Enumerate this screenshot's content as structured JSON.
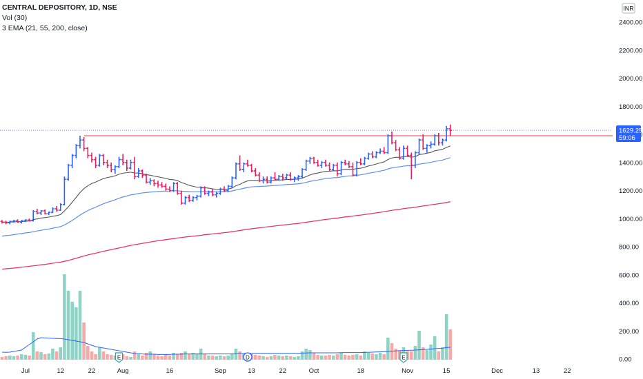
{
  "legend": {
    "symbol": "CENTRAL DEPOSITORY, 1D, NSE",
    "volume": "Vol (30)",
    "ema": "3 EMA (21, 55, 200, close)"
  },
  "currency_tag": "INR",
  "last_price_label": "1629.25",
  "countdown_label": "59:06",
  "colors": {
    "up": "#2962ff",
    "down": "#e91e63",
    "vol_up": "#8fd3c6",
    "vol_down": "#f7a9a7",
    "ema21": "#555555",
    "ema55": "#5b8def",
    "ema200": "#e8336e",
    "resistance": "#f23645",
    "last_price_line": "#2962ff",
    "badge": "#2962ff"
  },
  "event_markers": [
    {
      "label": "E",
      "date_index": 30
    },
    {
      "label": "D",
      "date_index": 63
    },
    {
      "label": "E",
      "date_index": 103
    }
  ],
  "chart_data": {
    "type": "ohlc",
    "title": "CENTRAL DEPOSITORY, 1D, NSE",
    "y_ticks": [
      "2400.00",
      "2200.00",
      "2000.00",
      "1800.00",
      "1600.00",
      "1400.00",
      "1200.00",
      "1000.00",
      "800.00",
      "600.00",
      "400.00",
      "200.00",
      "0.00"
    ],
    "y_range": [
      -40,
      2500
    ],
    "x_ticks": [
      {
        "label": "Jul",
        "i": 6
      },
      {
        "label": "12",
        "i": 15
      },
      {
        "label": "22",
        "i": 23
      },
      {
        "label": "Aug",
        "i": 31
      },
      {
        "label": "16",
        "i": 43
      },
      {
        "label": "Sep",
        "i": 56
      },
      {
        "label": "13",
        "i": 64
      },
      {
        "label": "22",
        "i": 72
      },
      {
        "label": "Oct",
        "i": 80
      },
      {
        "label": "18",
        "i": 92
      },
      {
        "label": "Nov",
        "i": 104
      },
      {
        "label": "15",
        "i": 114
      },
      {
        "label": "Dec",
        "i": 127
      },
      {
        "label": "13",
        "i": 137
      },
      {
        "label": "22",
        "i": 145
      }
    ],
    "resistance_level": 1590,
    "last_price": 1629.25,
    "x_count": 150,
    "bars": [
      [
        980,
        990,
        965,
        975,
        20
      ],
      [
        975,
        985,
        960,
        970,
        25
      ],
      [
        970,
        985,
        960,
        980,
        30
      ],
      [
        980,
        990,
        970,
        985,
        25
      ],
      [
        985,
        995,
        970,
        975,
        30
      ],
      [
        975,
        990,
        965,
        985,
        40
      ],
      [
        985,
        995,
        975,
        990,
        35
      ],
      [
        990,
        1000,
        980,
        985,
        30
      ],
      [
        985,
        1060,
        980,
        1050,
        200
      ],
      [
        1050,
        1070,
        1030,
        1040,
        60
      ],
      [
        1040,
        1060,
        1025,
        1055,
        55
      ],
      [
        1055,
        1065,
        1030,
        1035,
        40
      ],
      [
        1035,
        1050,
        1025,
        1045,
        45
      ],
      [
        1045,
        1080,
        1040,
        1070,
        80
      ],
      [
        1070,
        1090,
        1050,
        1060,
        60
      ],
      [
        1060,
        1110,
        1055,
        1100,
        90
      ],
      [
        1100,
        1300,
        1095,
        1280,
        620
      ],
      [
        1280,
        1390,
        1270,
        1380,
        500
      ],
      [
        1380,
        1460,
        1360,
        1450,
        420
      ],
      [
        1450,
        1530,
        1430,
        1520,
        380
      ],
      [
        1520,
        1590,
        1500,
        1560,
        500
      ],
      [
        1560,
        1580,
        1480,
        1500,
        270
      ],
      [
        1500,
        1510,
        1430,
        1450,
        100
      ],
      [
        1450,
        1470,
        1400,
        1420,
        60
      ],
      [
        1420,
        1440,
        1360,
        1380,
        40
      ],
      [
        1380,
        1460,
        1370,
        1450,
        90
      ],
      [
        1450,
        1460,
        1380,
        1400,
        60
      ],
      [
        1400,
        1420,
        1360,
        1380,
        40
      ],
      [
        1380,
        1400,
        1330,
        1350,
        35
      ],
      [
        1350,
        1380,
        1320,
        1370,
        30
      ],
      [
        1370,
        1440,
        1360,
        1420,
        30
      ],
      [
        1420,
        1460,
        1380,
        1400,
        40
      ],
      [
        1400,
        1420,
        1340,
        1360,
        25
      ],
      [
        1360,
        1420,
        1350,
        1400,
        20
      ],
      [
        1400,
        1440,
        1280,
        1300,
        60
      ],
      [
        1300,
        1360,
        1290,
        1340,
        40
      ],
      [
        1340,
        1350,
        1290,
        1310,
        30
      ],
      [
        1310,
        1320,
        1250,
        1260,
        50
      ],
      [
        1260,
        1290,
        1240,
        1270,
        60
      ],
      [
        1270,
        1280,
        1230,
        1250,
        40
      ],
      [
        1250,
        1270,
        1220,
        1240,
        30
      ],
      [
        1240,
        1260,
        1220,
        1230,
        25
      ],
      [
        1230,
        1250,
        1200,
        1210,
        35
      ],
      [
        1210,
        1230,
        1190,
        1200,
        30
      ],
      [
        1200,
        1260,
        1190,
        1250,
        50
      ],
      [
        1250,
        1260,
        1170,
        1180,
        40
      ],
      [
        1180,
        1200,
        1100,
        1110,
        50
      ],
      [
        1110,
        1160,
        1100,
        1150,
        60
      ],
      [
        1150,
        1170,
        1120,
        1130,
        40
      ],
      [
        1130,
        1160,
        1120,
        1150,
        50
      ],
      [
        1150,
        1170,
        1130,
        1160,
        40
      ],
      [
        1160,
        1230,
        1150,
        1220,
        80
      ],
      [
        1220,
        1230,
        1170,
        1180,
        40
      ],
      [
        1180,
        1200,
        1160,
        1190,
        30
      ],
      [
        1190,
        1210,
        1160,
        1170,
        30
      ],
      [
        1170,
        1190,
        1150,
        1180,
        25
      ],
      [
        1180,
        1220,
        1170,
        1210,
        30
      ],
      [
        1210,
        1230,
        1190,
        1200,
        25
      ],
      [
        1200,
        1240,
        1190,
        1230,
        30
      ],
      [
        1230,
        1300,
        1220,
        1290,
        40
      ],
      [
        1290,
        1400,
        1280,
        1390,
        80
      ],
      [
        1390,
        1450,
        1340,
        1350,
        60
      ],
      [
        1350,
        1400,
        1330,
        1390,
        40
      ],
      [
        1390,
        1420,
        1370,
        1380,
        50
      ],
      [
        1380,
        1390,
        1330,
        1340,
        40
      ],
      [
        1340,
        1360,
        1300,
        1310,
        35
      ],
      [
        1310,
        1330,
        1260,
        1270,
        30
      ],
      [
        1270,
        1300,
        1250,
        1280,
        25
      ],
      [
        1280,
        1300,
        1250,
        1260,
        20
      ],
      [
        1260,
        1300,
        1250,
        1290,
        25
      ],
      [
        1290,
        1330,
        1270,
        1280,
        35
      ],
      [
        1280,
        1310,
        1270,
        1300,
        30
      ],
      [
        1300,
        1320,
        1270,
        1290,
        25
      ],
      [
        1290,
        1320,
        1280,
        1310,
        30
      ],
      [
        1310,
        1330,
        1270,
        1280,
        25
      ],
      [
        1280,
        1300,
        1260,
        1290,
        20
      ],
      [
        1290,
        1310,
        1270,
        1300,
        25
      ],
      [
        1300,
        1360,
        1290,
        1350,
        60
      ],
      [
        1350,
        1420,
        1340,
        1410,
        80
      ],
      [
        1410,
        1440,
        1390,
        1430,
        70
      ],
      [
        1430,
        1440,
        1390,
        1400,
        50
      ],
      [
        1400,
        1420,
        1370,
        1380,
        35
      ],
      [
        1380,
        1410,
        1360,
        1400,
        30
      ],
      [
        1400,
        1420,
        1370,
        1380,
        30
      ],
      [
        1380,
        1400,
        1340,
        1350,
        35
      ],
      [
        1350,
        1390,
        1340,
        1380,
        30
      ],
      [
        1380,
        1400,
        1300,
        1320,
        40
      ],
      [
        1320,
        1410,
        1310,
        1400,
        50
      ],
      [
        1400,
        1420,
        1380,
        1390,
        35
      ],
      [
        1390,
        1410,
        1360,
        1370,
        30
      ],
      [
        1370,
        1400,
        1300,
        1310,
        35
      ],
      [
        1310,
        1410,
        1300,
        1400,
        40
      ],
      [
        1400,
        1430,
        1380,
        1390,
        30
      ],
      [
        1390,
        1440,
        1380,
        1430,
        60
      ],
      [
        1430,
        1470,
        1420,
        1460,
        50
      ],
      [
        1460,
        1480,
        1430,
        1440,
        45
      ],
      [
        1440,
        1480,
        1430,
        1470,
        40
      ],
      [
        1470,
        1500,
        1460,
        1480,
        50
      ],
      [
        1480,
        1510,
        1460,
        1470,
        40
      ],
      [
        1470,
        1600,
        1460,
        1590,
        160
      ],
      [
        1590,
        1620,
        1530,
        1540,
        120
      ],
      [
        1540,
        1560,
        1480,
        1490,
        80
      ],
      [
        1490,
        1510,
        1420,
        1430,
        70
      ],
      [
        1430,
        1520,
        1420,
        1500,
        90
      ],
      [
        1500,
        1520,
        1440,
        1450,
        60
      ],
      [
        1450,
        1470,
        1280,
        1380,
        60
      ],
      [
        1380,
        1480,
        1360,
        1470,
        100
      ],
      [
        1470,
        1570,
        1460,
        1560,
        210
      ],
      [
        1560,
        1600,
        1490,
        1500,
        90
      ],
      [
        1500,
        1530,
        1470,
        1520,
        70
      ],
      [
        1520,
        1550,
        1500,
        1530,
        110
      ],
      [
        1530,
        1600,
        1520,
        1590,
        170
      ],
      [
        1590,
        1610,
        1520,
        1540,
        60
      ],
      [
        1540,
        1570,
        1520,
        1560,
        90
      ],
      [
        1560,
        1660,
        1550,
        1640,
        330
      ],
      [
        1640,
        1670,
        1590,
        1629,
        220
      ]
    ],
    "ema21": [
      975,
      974,
      975,
      977,
      978,
      979,
      981,
      983,
      993,
      998,
      1004,
      1007,
      1011,
      1017,
      1021,
      1029,
      1055,
      1084,
      1117,
      1151,
      1186,
      1213,
      1234,
      1250,
      1260,
      1273,
      1285,
      1292,
      1298,
      1305,
      1316,
      1324,
      1327,
      1331,
      1325,
      1324,
      1320,
      1313,
      1309,
      1303,
      1298,
      1292,
      1286,
      1279,
      1277,
      1271,
      1257,
      1248,
      1237,
      1230,
      1224,
      1224,
      1220,
      1217,
      1212,
      1208,
      1209,
      1208,
      1210,
      1218,
      1234,
      1244,
      1258,
      1269,
      1272,
      1273,
      1271,
      1271,
      1269,
      1271,
      1272,
      1275,
      1276,
      1279,
      1279,
      1280,
      1282,
      1288,
      1299,
      1311,
      1320,
      1325,
      1331,
      1336,
      1337,
      1341,
      1340,
      1346,
      1350,
      1352,
      1351,
      1356,
      1359,
      1366,
      1375,
      1381,
      1389,
      1397,
      1404,
      1421,
      1432,
      1437,
      1436,
      1442,
      1443,
      1438,
      1441,
      1456,
      1460,
      1466,
      1472,
      1483,
      1488,
      1494,
      1507,
      1518
    ],
    "ema55": [
      875,
      879,
      882,
      886,
      890,
      894,
      898,
      901,
      907,
      912,
      917,
      922,
      926,
      932,
      937,
      943,
      955,
      970,
      987,
      1006,
      1025,
      1042,
      1057,
      1070,
      1081,
      1094,
      1106,
      1116,
      1125,
      1134,
      1145,
      1154,
      1161,
      1169,
      1173,
      1179,
      1183,
      1186,
      1189,
      1191,
      1193,
      1195,
      1196,
      1196,
      1199,
      1198,
      1195,
      1194,
      1192,
      1191,
      1191,
      1192,
      1192,
      1192,
      1191,
      1191,
      1192,
      1192,
      1193,
      1197,
      1204,
      1209,
      1216,
      1222,
      1226,
      1228,
      1229,
      1231,
      1232,
      1234,
      1236,
      1238,
      1240,
      1243,
      1244,
      1246,
      1248,
      1252,
      1258,
      1265,
      1271,
      1275,
      1280,
      1285,
      1287,
      1291,
      1292,
      1297,
      1301,
      1304,
      1305,
      1309,
      1312,
      1317,
      1323,
      1328,
      1333,
      1339,
      1344,
      1354,
      1361,
      1366,
      1369,
      1374,
      1377,
      1377,
      1381,
      1388,
      1392,
      1396,
      1401,
      1407,
      1412,
      1417,
      1426,
      1434
    ],
    "ema200": [
      640,
      643,
      645,
      648,
      651,
      654,
      657,
      660,
      664,
      667,
      671,
      674,
      678,
      682,
      686,
      690,
      696,
      702,
      710,
      718,
      726,
      734,
      741,
      748,
      754,
      761,
      767,
      773,
      779,
      785,
      791,
      797,
      803,
      809,
      814,
      819,
      824,
      829,
      833,
      838,
      842,
      846,
      850,
      854,
      858,
      862,
      865,
      869,
      872,
      875,
      878,
      881,
      885,
      888,
      891,
      894,
      897,
      900,
      903,
      907,
      911,
      915,
      920,
      924,
      928,
      931,
      935,
      938,
      941,
      944,
      948,
      951,
      954,
      957,
      960,
      963,
      966,
      970,
      974,
      978,
      982,
      986,
      990,
      994,
      997,
      1001,
      1004,
      1008,
      1012,
      1015,
      1018,
      1022,
      1025,
      1029,
      1033,
      1037,
      1041,
      1045,
      1049,
      1054,
      1059,
      1063,
      1066,
      1071,
      1075,
      1077,
      1081,
      1086,
      1090,
      1094,
      1098,
      1102,
      1106,
      1110,
      1115,
      1120
    ],
    "vol_ma30": [
      55,
      54,
      55,
      60,
      65,
      70,
      90,
      110,
      130,
      150,
      160,
      158,
      156,
      155,
      154,
      153,
      150,
      145,
      140,
      135,
      130,
      125,
      115,
      105,
      95,
      90,
      85,
      80,
      75,
      70,
      65,
      60,
      55,
      50,
      45,
      45,
      42,
      40,
      40,
      40,
      38,
      38,
      38,
      38,
      40,
      40,
      40,
      42,
      42,
      42,
      42,
      42,
      42,
      42,
      42,
      42,
      42,
      42,
      42,
      42,
      44,
      45,
      46,
      47,
      47,
      47,
      47,
      47,
      47,
      47,
      47,
      47,
      47,
      47,
      47,
      47,
      47,
      48,
      49,
      50,
      50,
      50,
      50,
      50,
      50,
      50,
      50,
      51,
      52,
      52,
      52,
      52,
      52,
      53,
      54,
      55,
      56,
      57,
      58,
      60,
      62,
      64,
      65,
      67,
      68,
      69,
      70,
      72,
      74,
      75,
      77,
      80,
      82,
      84,
      88,
      90
    ]
  }
}
